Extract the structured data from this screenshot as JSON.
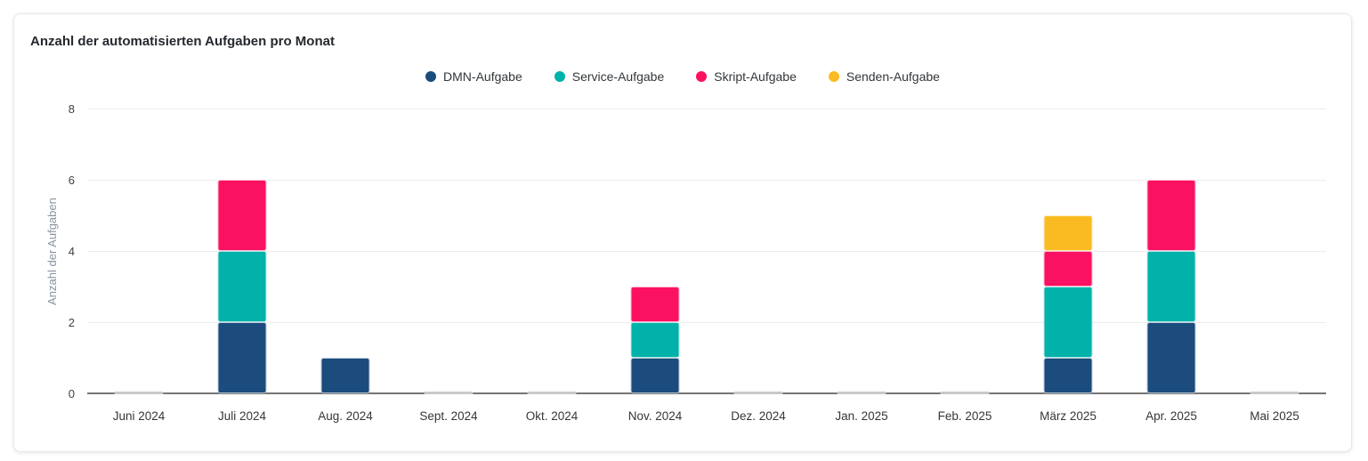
{
  "card": {
    "title": "Anzahl der automatisierten Aufgaben pro Monat"
  },
  "chart_data": {
    "type": "bar",
    "stacked": true,
    "title": "Anzahl der automatisierten Aufgaben pro Monat",
    "xlabel": "",
    "ylabel": "Anzahl der Aufgaben",
    "ylim": [
      0,
      8
    ],
    "yticks": [
      0,
      2,
      4,
      6,
      8
    ],
    "grid": true,
    "legend_position": "top-center",
    "categories": [
      "Juni 2024",
      "Juli 2024",
      "Aug. 2024",
      "Sept. 2024",
      "Okt. 2024",
      "Nov. 2024",
      "Dez. 2024",
      "Jan. 2025",
      "Feb. 2025",
      "März 2025",
      "Apr. 2025",
      "Mai 2025"
    ],
    "series": [
      {
        "name": "DMN-Aufgabe",
        "color": "#1c4b7d",
        "values": [
          0,
          2,
          1,
          0,
          0,
          1,
          0,
          0,
          0,
          1,
          2,
          0
        ]
      },
      {
        "name": "Service-Aufgabe",
        "color": "#00b2a9",
        "values": [
          0,
          2,
          0,
          0,
          0,
          1,
          0,
          0,
          0,
          2,
          2,
          0
        ]
      },
      {
        "name": "Skript-Aufgabe",
        "color": "#fb1162",
        "values": [
          0,
          2,
          0,
          0,
          0,
          1,
          0,
          0,
          0,
          1,
          2,
          0
        ]
      },
      {
        "name": "Senden-Aufgabe",
        "color": "#f9bb21",
        "values": [
          0,
          0,
          0,
          0,
          0,
          0,
          0,
          0,
          0,
          1,
          0,
          0
        ]
      }
    ],
    "colors": {
      "axis_line": "#757575",
      "gridline": "#ededed",
      "zero_mark": "#c9c9c9",
      "tick_label": "#3c4147",
      "axis_title": "#8a93a1",
      "title_text": "#24292e",
      "legend_text": "#33373a"
    }
  }
}
